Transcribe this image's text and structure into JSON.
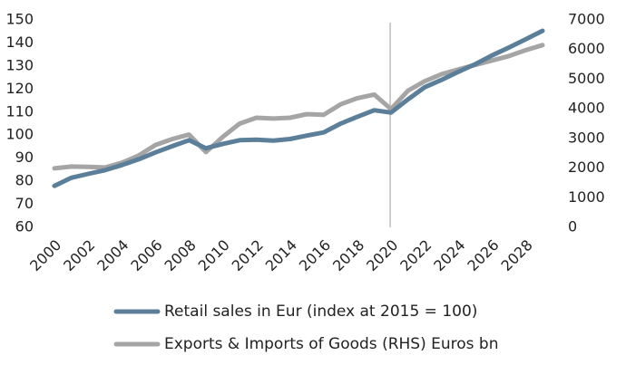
{
  "chart_data": {
    "type": "line",
    "title": "",
    "xlabel": "",
    "ylabel": "",
    "x": [
      2000,
      2001,
      2002,
      2003,
      2004,
      2005,
      2006,
      2007,
      2008,
      2009,
      2010,
      2011,
      2012,
      2013,
      2014,
      2015,
      2016,
      2017,
      2018,
      2019,
      2020,
      2021,
      2022,
      2023,
      2024,
      2025,
      2026,
      2027,
      2028,
      2029
    ],
    "x_tick_labels": [
      "2000",
      "2002",
      "2004",
      "2006",
      "2008",
      "2010",
      "2012",
      "2014",
      "2016",
      "2018",
      "2020",
      "2022",
      "2024",
      "2026",
      "2028"
    ],
    "y_left": {
      "min": 60,
      "max": 150,
      "ticks": [
        "60",
        "70",
        "80",
        "90",
        "100",
        "110",
        "120",
        "130",
        "140",
        "150"
      ]
    },
    "y_right": {
      "min": 0,
      "max": 7000,
      "ticks": [
        "0",
        "1000",
        "2000",
        "3000",
        "4000",
        "5000",
        "6000",
        "7000"
      ]
    },
    "vertical_marker_x": 2020,
    "grid": false,
    "legend_position": "bottom",
    "series": [
      {
        "name": "Retail sales in Eur (index at 2015 = 100)",
        "axis": "left",
        "color": "#5b7f99",
        "values": [
          78.0,
          81.5,
          83.2,
          84.8,
          87.0,
          89.5,
          92.5,
          95.2,
          97.8,
          94.3,
          96.2,
          97.8,
          98.0,
          97.6,
          98.3,
          99.8,
          101.2,
          105.0,
          108.0,
          110.8,
          109.8,
          115.5,
          120.8,
          124.0,
          127.5,
          130.8,
          134.6,
          138.0,
          141.6,
          145.3
        ]
      },
      {
        "name": "Exports & Imports of Goods (RHS) Euros bn",
        "axis": "right",
        "color": "#a5a5a5",
        "values": [
          1990,
          2050,
          2040,
          2020,
          2180,
          2420,
          2780,
          2980,
          3130,
          2540,
          3050,
          3500,
          3700,
          3670,
          3700,
          3820,
          3800,
          4150,
          4360,
          4480,
          3990,
          4610,
          4930,
          5170,
          5330,
          5480,
          5630,
          5780,
          5980,
          6150
        ]
      }
    ]
  }
}
